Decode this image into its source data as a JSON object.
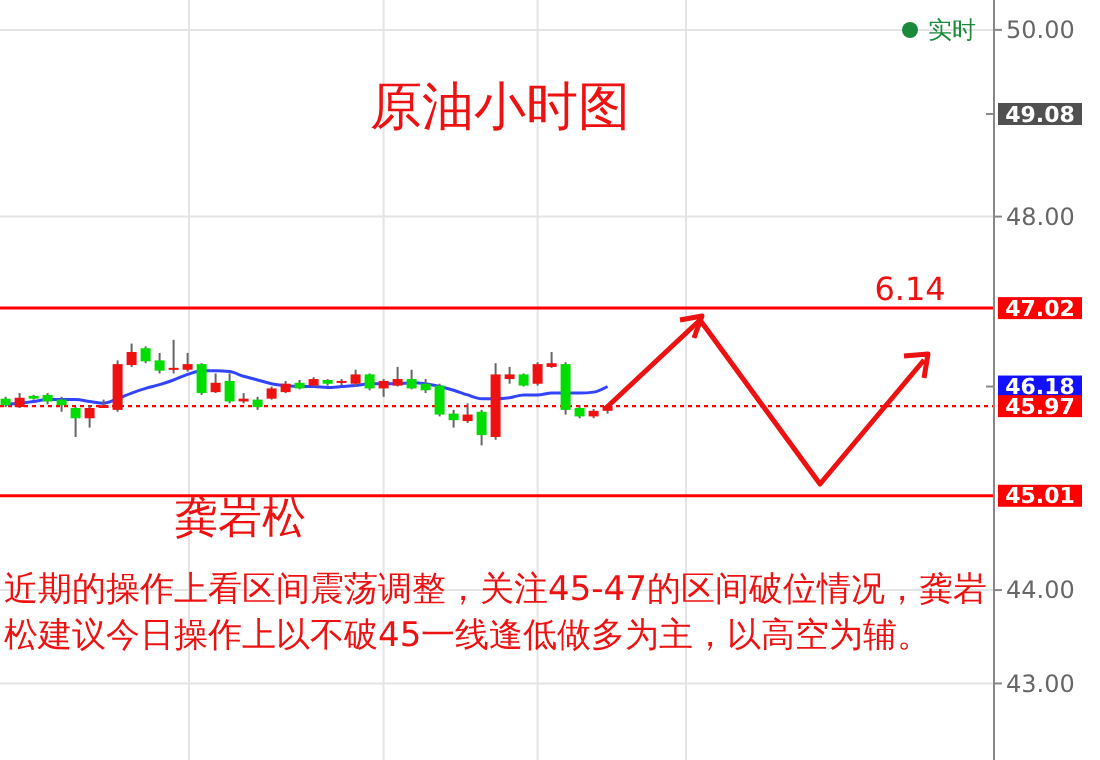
{
  "chart_data": {
    "type": "candlestick",
    "title": "原油小时图",
    "categories": [
      null,
      null,
      null,
      null,
      null,
      null,
      null,
      null,
      null,
      null,
      null,
      null,
      null,
      null,
      null,
      null,
      null,
      null,
      null,
      null,
      null,
      null,
      null,
      null,
      null,
      null,
      null,
      null,
      null,
      null,
      null,
      null,
      null,
      null,
      null,
      null,
      null,
      null,
      null,
      null,
      null,
      null,
      null,
      null,
      null,
      null,
      null,
      null,
      null,
      null,
      null,
      null,
      null,
      null,
      null,
      null,
      null,
      null,
      null,
      null,
      null,
      null,
      null,
      null,
      null,
      null,
      null,
      null,
      null,
      null,
      null
    ],
    "ohlc": [
      [
        46.05,
        46.07,
        45.96,
        45.98
      ],
      [
        45.96,
        46.11,
        45.95,
        46.06
      ],
      [
        46.08,
        46.09,
        46.04,
        46.05
      ],
      [
        46.09,
        46.11,
        45.99,
        46.02
      ],
      [
        46.04,
        46.07,
        45.91,
        45.98
      ],
      [
        45.95,
        45.96,
        45.64,
        45.84
      ],
      [
        45.84,
        45.98,
        45.74,
        45.95
      ],
      [
        45.95,
        46.04,
        45.95,
        45.98
      ],
      [
        45.93,
        46.46,
        45.91,
        46.42
      ],
      [
        46.41,
        46.64,
        46.39,
        46.55
      ],
      [
        46.59,
        46.61,
        46.43,
        46.45
      ],
      [
        46.46,
        46.54,
        46.32,
        46.35
      ],
      [
        46.36,
        46.68,
        46.32,
        46.38
      ],
      [
        46.36,
        46.54,
        46.34,
        46.42
      ],
      [
        46.42,
        46.43,
        46.09,
        46.11
      ],
      [
        46.12,
        46.32,
        46.11,
        46.22
      ],
      [
        46.24,
        46.32,
        46.0,
        46.02
      ],
      [
        46.02,
        46.11,
        46.0,
        46.05
      ],
      [
        46.04,
        46.07,
        45.93,
        45.96
      ],
      [
        46.05,
        46.18,
        46.04,
        46.16
      ],
      [
        46.12,
        46.24,
        46.11,
        46.21
      ],
      [
        46.22,
        46.25,
        46.15,
        46.16
      ],
      [
        46.19,
        46.28,
        46.18,
        46.26
      ],
      [
        46.25,
        46.26,
        46.19,
        46.21
      ],
      [
        46.22,
        46.26,
        46.19,
        46.24
      ],
      [
        46.21,
        46.36,
        46.18,
        46.31
      ],
      [
        46.31,
        46.32,
        46.14,
        46.16
      ],
      [
        46.16,
        46.26,
        46.07,
        46.24
      ],
      [
        46.19,
        46.39,
        46.18,
        46.26
      ],
      [
        46.26,
        46.36,
        46.15,
        46.16
      ],
      [
        46.21,
        46.26,
        46.11,
        46.14
      ],
      [
        46.19,
        46.21,
        45.86,
        45.88
      ],
      [
        45.89,
        45.93,
        45.74,
        45.82
      ],
      [
        45.81,
        46.0,
        45.79,
        45.88
      ],
      [
        45.91,
        45.93,
        45.55,
        45.66
      ],
      [
        45.64,
        46.43,
        45.61,
        46.31
      ],
      [
        46.26,
        46.39,
        46.21,
        46.31
      ],
      [
        46.31,
        46.32,
        46.18,
        46.19
      ],
      [
        46.21,
        46.44,
        46.19,
        46.42
      ],
      [
        46.39,
        46.55,
        46.38,
        46.43
      ],
      [
        46.42,
        46.44,
        45.88,
        45.93
      ],
      [
        45.95,
        45.98,
        45.84,
        45.86
      ],
      [
        45.86,
        45.94,
        45.84,
        45.92
      ],
      [
        45.92,
        45.98,
        45.89,
        45.97
      ],
      null,
      null,
      null,
      null,
      null,
      null,
      null,
      null,
      null,
      null,
      null,
      null,
      null,
      null,
      null,
      null,
      null,
      null,
      null,
      null,
      null,
      null,
      null,
      null,
      null,
      null,
      null
    ],
    "colors": [
      "#00dd00",
      "#ee1111",
      "#00dd00",
      "#00dd00",
      "#00dd00",
      "#00dd00",
      "#ee1111",
      "#ee1111",
      "#ee1111",
      "#ee1111",
      "#00dd00",
      "#00dd00",
      "#ee1111",
      "#ee1111",
      "#00dd00",
      "#ee1111",
      "#00dd00",
      "#ee1111",
      "#00dd00",
      "#ee1111",
      "#ee1111",
      "#00dd00",
      "#ee1111",
      "#00dd00",
      "#ee1111",
      "#ee1111",
      "#00dd00",
      "#ee1111",
      "#ee1111",
      "#00dd00",
      "#00dd00",
      "#00dd00",
      "#00dd00",
      "#ee1111",
      "#00dd00",
      "#ee1111",
      "#ee1111",
      "#00dd00",
      "#ee1111",
      "#ee1111",
      "#00dd00",
      "#00dd00",
      "#ee1111",
      "#ee1111",
      null,
      null,
      null,
      null,
      null,
      null,
      null,
      null,
      null,
      null,
      null,
      null,
      null,
      null,
      null,
      null,
      null,
      null,
      null,
      null,
      null,
      null,
      null,
      null,
      null,
      null,
      null
    ],
    "series": [
      {
        "type": "line",
        "color": "#3344ff",
        "values": [
          45.99,
          46.0,
          46.02,
          46.04,
          46.04,
          46.04,
          46.02,
          46.0,
          46.05,
          46.11,
          46.16,
          46.2,
          46.25,
          46.31,
          46.35,
          46.35,
          46.34,
          46.29,
          46.25,
          46.21,
          46.19,
          46.18,
          46.18,
          46.17,
          46.18,
          46.19,
          46.21,
          46.21,
          46.21,
          46.22,
          46.21,
          46.18,
          46.14,
          46.09,
          46.05,
          46.05,
          46.06,
          46.09,
          46.09,
          46.11,
          46.11,
          46.11,
          46.12,
          46.18,
          null,
          null,
          null,
          null,
          null,
          null,
          null,
          null,
          null,
          null,
          null,
          null,
          null,
          null,
          null,
          null,
          null,
          null,
          null,
          null,
          null,
          null,
          null,
          null,
          null,
          null,
          null
        ]
      }
    ],
    "ylim": [
      42.18,
      50.32
    ],
    "yticks": [
      {
        "value": 43,
        "label": "43.00"
      },
      {
        "value": 44,
        "label": "44.00"
      },
      {
        "value": 48,
        "label": "48.00"
      },
      {
        "value": 50,
        "label": "50.00"
      }
    ],
    "grid": true,
    "ref_lines": [
      {
        "axis": "y",
        "value": 47.02,
        "label": "47.02",
        "color": "#ff0000",
        "line_style": "solid"
      },
      {
        "axis": "y",
        "value": 45.97,
        "label": "45.97",
        "color": "#ff0000",
        "line_style": "dotted"
      },
      {
        "axis": "y",
        "value": 45.01,
        "label": "45.01",
        "color": "#ff0000",
        "line_style": "solid"
      }
    ],
    "annotations": [
      "实时",
      "6.14",
      "龚岩松",
      "近期的操作上看区间震荡调整，关注45-47的区间破位情况，龚岩松建议今日操作上以不破45一线逢低做多为主，以高空为辅。",
      "49.08",
      "46.18"
    ]
  }
}
